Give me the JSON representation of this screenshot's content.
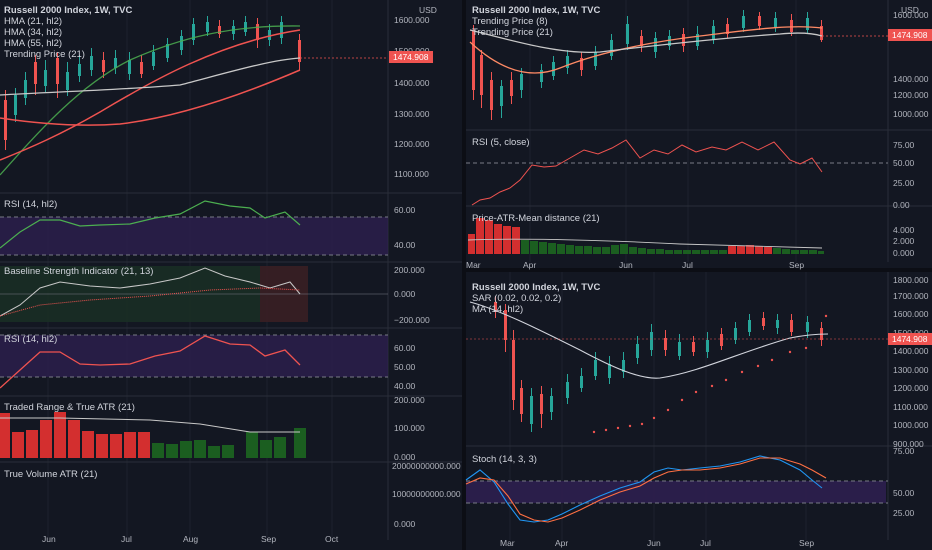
{
  "left": {
    "usd": "USD",
    "title_line": "Russell 2000 Index, 1W, TVC",
    "legend": [
      "HMA (21, hl2)",
      "HMA (34, hl2)",
      "HMA (55, hl2)",
      "Trending Price (21)"
    ],
    "price_ticks": [
      "1600.000",
      "1500.000",
      "1400.000",
      "1300.000",
      "1200.000",
      "1100.000"
    ],
    "last_price": "1474.908",
    "rsi1_label": "RSI (14, hl2)",
    "rsi1_ticks": [
      "60.00",
      "40.00"
    ],
    "bsi_label": "Baseline Strength Indicator (21, 13)",
    "bsi_ticks": [
      "200.000",
      "0.000",
      "−200.000"
    ],
    "rsi2_label": "RSI (14, hl2)",
    "rsi2_ticks": [
      "60.00",
      "50.00",
      "40.00"
    ],
    "tr_label": "Traded Range & True ATR (21)",
    "tr_ticks": [
      "200.000",
      "100.000",
      "0.000"
    ],
    "tv_label": "True Volume ATR (21)",
    "tv_ticks": [
      "20000000000.000",
      "10000000000.000",
      "0.000"
    ],
    "time_ticks": [
      "Jun",
      "Jul",
      "Aug",
      "Sep",
      "Oct"
    ]
  },
  "right_top": {
    "usd": "USD",
    "title_line": "Russell 2000 Index, 1W, TVC",
    "legend": [
      "Trending Price (8)",
      "Trending Price (21)"
    ],
    "price_ticks": [
      "1600.000",
      "1400.000",
      "1200.000",
      "1000.000"
    ],
    "last_price": "1474.908",
    "rsi_label": "RSI (5, close)",
    "rsi_ticks": [
      "75.00",
      "50.00",
      "25.00",
      "0.00"
    ],
    "atr_label": "Price-ATR-Mean distance (21)",
    "atr_ticks": [
      "4.000",
      "2.000",
      "0.000"
    ],
    "time_ticks": [
      "Mar",
      "Apr",
      "Jun",
      "Jul",
      "Sep"
    ]
  },
  "right_bottom": {
    "title_line": "Russell 2000 Index, 1W, TVC",
    "legend": [
      "SAR (0.02, 0.02, 0.2)",
      "MA (14, hl2)"
    ],
    "price_ticks": [
      "1800.000",
      "1700.000",
      "1600.000",
      "1500.000",
      "1400.000",
      "1300.000",
      "1200.000",
      "1100.000",
      "1000.000",
      "900.000"
    ],
    "last_price": "1474.908",
    "stoch_label": "Stoch (14, 3, 3)",
    "stoch_ticks": [
      "75.00",
      "50.00",
      "25.00"
    ],
    "time_ticks": [
      "Mar",
      "Apr",
      "Jun",
      "Jul",
      "Sep"
    ]
  },
  "colors": {
    "bg": "#131722",
    "up": "#26a69a",
    "down": "#ef5350",
    "grid": "#2a2e39",
    "purple_band": "#2d1f4f",
    "price_tag": "#ef5350"
  }
}
